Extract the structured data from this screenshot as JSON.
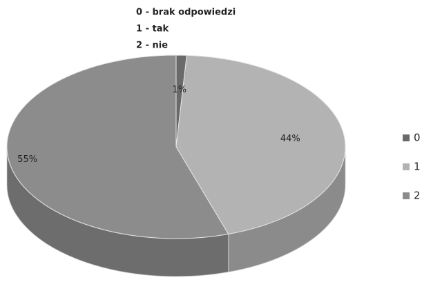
{
  "chart_data": {
    "type": "pie",
    "annotations": [
      "0 - brak odpowiedzi",
      "1 - tak",
      "2 - nie"
    ],
    "categories": [
      "0",
      "1",
      "2"
    ],
    "values": [
      1,
      44,
      55
    ],
    "value_labels": [
      "1%",
      "44%",
      "55%"
    ],
    "colors": [
      "#6a6a6a",
      "#b3b3b3",
      "#8c8c8c"
    ],
    "legend": "right"
  }
}
